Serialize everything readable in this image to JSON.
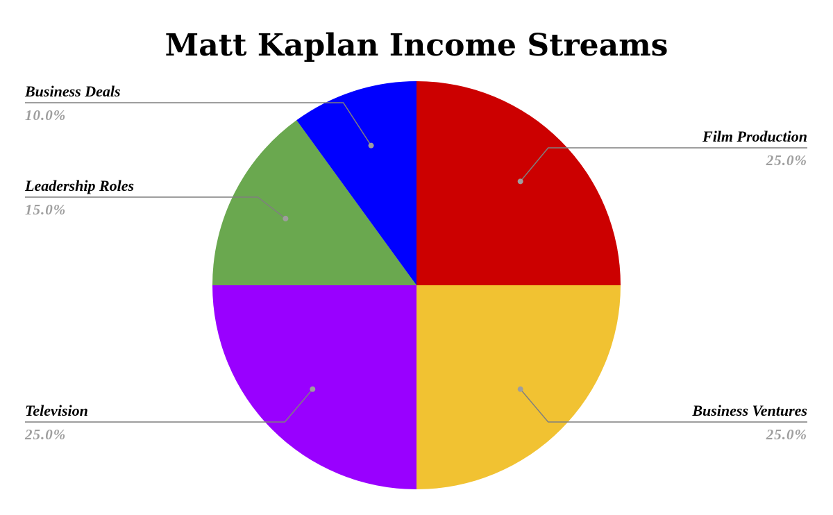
{
  "chart_data": {
    "type": "pie",
    "title": "Matt Kaplan Income Streams",
    "slices": [
      {
        "label": "Film Production",
        "value": 25.0,
        "percent_label": "25.0%",
        "color": "#cc0000"
      },
      {
        "label": "Business Ventures",
        "value": 25.0,
        "percent_label": "25.0%",
        "color": "#f1c232"
      },
      {
        "label": "Television",
        "value": 25.0,
        "percent_label": "25.0%",
        "color": "#9900ff"
      },
      {
        "label": "Leadership Roles",
        "value": 15.0,
        "percent_label": "15.0%",
        "color": "#6aa84f"
      },
      {
        "label": "Business Deals",
        "value": 10.0,
        "percent_label": "10.0%",
        "color": "#0000ff"
      }
    ],
    "start_angle": "12 o'clock",
    "direction": "clockwise",
    "legend": "none",
    "data_labels": "outside with leader lines"
  }
}
